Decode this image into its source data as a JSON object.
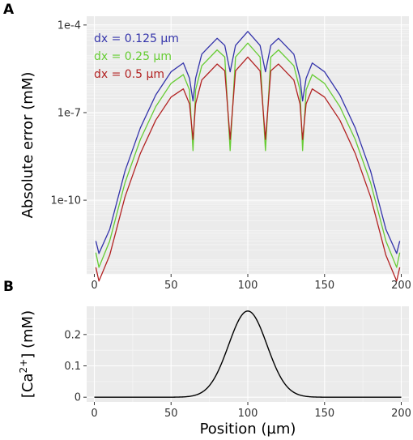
{
  "colors": {
    "panel_bg": "#ebebeb",
    "grid_major": "#ffffff",
    "grid_minor": "#f5f5f5",
    "tick": "#333333"
  },
  "chart_data": [
    {
      "panel": "A",
      "type": "line",
      "title": "",
      "xlabel": "",
      "ylabel": "Absolute error (mM)",
      "yscale": "log",
      "xlim": [
        -5,
        205
      ],
      "ylim": [
        3e-13,
        0.0002
      ],
      "x_ticks": [
        0,
        50,
        100,
        150,
        200
      ],
      "y_ticks": [
        1e-10,
        1e-07,
        0.0001
      ],
      "x_tick_labels": [
        "0",
        "50",
        "100",
        "150",
        "200"
      ],
      "y_tick_labels": [
        "1e-10",
        "1e-7",
        "1e-4"
      ],
      "grid": true,
      "legend_position": "top-left, inside, unboxed labels",
      "series": [
        {
          "name": "dx = 0.125 µm",
          "color": "#3333aa",
          "points": [
            [
              1,
              4e-12
            ],
            [
              3,
              1.5e-12
            ],
            [
              10,
              1e-11
            ],
            [
              20,
              1e-09
            ],
            [
              30,
              3e-08
            ],
            [
              40,
              4e-07
            ],
            [
              50,
              2.5e-06
            ],
            [
              58,
              5e-06
            ],
            [
              62,
              1.5e-06
            ],
            [
              64.3,
              2.5e-07
            ],
            [
              66,
              1.5e-06
            ],
            [
              70,
              1e-05
            ],
            [
              80,
              3.5e-05
            ],
            [
              85,
              2e-05
            ],
            [
              88.5,
              2.5e-06
            ],
            [
              92,
              2e-05
            ],
            [
              100,
              6e-05
            ],
            [
              108,
              2e-05
            ],
            [
              111.5,
              2.5e-06
            ],
            [
              115,
              2e-05
            ],
            [
              120,
              3.5e-05
            ],
            [
              130,
              1e-05
            ],
            [
              134,
              1.5e-06
            ],
            [
              135.7,
              2.5e-07
            ],
            [
              138,
              1.5e-06
            ],
            [
              142,
              5e-06
            ],
            [
              150,
              2.5e-06
            ],
            [
              160,
              4e-07
            ],
            [
              170,
              3e-08
            ],
            [
              180,
              1e-09
            ],
            [
              190,
              1e-11
            ],
            [
              197,
              1.5e-12
            ],
            [
              199,
              4e-12
            ]
          ]
        },
        {
          "name": "dx = 0.25 µm",
          "color": "#66cc33",
          "points": [
            [
              1,
              1.6e-12
            ],
            [
              3,
              5e-13
            ],
            [
              10,
              4e-12
            ],
            [
              20,
              4e-10
            ],
            [
              30,
              1.2e-08
            ],
            [
              40,
              1.6e-07
            ],
            [
              50,
              1e-06
            ],
            [
              58,
              2e-06
            ],
            [
              62,
              6e-07
            ],
            [
              64.3,
              5e-09
            ],
            [
              66,
              6e-07
            ],
            [
              70,
              4e-06
            ],
            [
              80,
              1.4e-05
            ],
            [
              85,
              8e-06
            ],
            [
              88.5,
              5e-09
            ],
            [
              92,
              8e-06
            ],
            [
              100,
              2.4e-05
            ],
            [
              108,
              8e-06
            ],
            [
              111.5,
              5e-09
            ],
            [
              115,
              8e-06
            ],
            [
              120,
              1.4e-05
            ],
            [
              130,
              4e-06
            ],
            [
              134,
              6e-07
            ],
            [
              135.7,
              5e-09
            ],
            [
              138,
              6e-07
            ],
            [
              142,
              2e-06
            ],
            [
              150,
              1e-06
            ],
            [
              160,
              1.6e-07
            ],
            [
              170,
              1.2e-08
            ],
            [
              180,
              4e-10
            ],
            [
              190,
              4e-12
            ],
            [
              197,
              5e-13
            ],
            [
              199,
              1.6e-12
            ]
          ]
        },
        {
          "name": "dx = 0.5 µm",
          "color": "#b22222",
          "points": [
            [
              1,
              5e-13
            ],
            [
              3,
              1.7e-13
            ],
            [
              10,
              1.3e-12
            ],
            [
              20,
              1.3e-10
            ],
            [
              30,
              4e-09
            ],
            [
              40,
              5.5e-08
            ],
            [
              50,
              3.4e-07
            ],
            [
              58,
              6.5e-07
            ],
            [
              62,
              2e-07
            ],
            [
              64.3,
              1.2e-08
            ],
            [
              66,
              2e-07
            ],
            [
              70,
              1.3e-06
            ],
            [
              80,
              4.6e-06
            ],
            [
              85,
              2.7e-06
            ],
            [
              88.5,
              1.2e-08
            ],
            [
              92,
              2.7e-06
            ],
            [
              100,
              8e-06
            ],
            [
              108,
              2.7e-06
            ],
            [
              111.5,
              1.2e-08
            ],
            [
              115,
              2.7e-06
            ],
            [
              120,
              4.6e-06
            ],
            [
              130,
              1.3e-06
            ],
            [
              134,
              2e-07
            ],
            [
              135.7,
              1.2e-08
            ],
            [
              138,
              2e-07
            ],
            [
              142,
              6.5e-07
            ],
            [
              150,
              3.4e-07
            ],
            [
              160,
              5.5e-08
            ],
            [
              170,
              4e-09
            ],
            [
              180,
              1.3e-10
            ],
            [
              190,
              1.3e-12
            ],
            [
              197,
              1.7e-13
            ],
            [
              199,
              5e-13
            ]
          ]
        }
      ]
    },
    {
      "panel": "B",
      "type": "line",
      "title": "",
      "xlabel": "Position (µm)",
      "ylabel_parts": [
        "[Ca",
        "2+",
        "] (mM)"
      ],
      "xlim": [
        -5,
        205
      ],
      "ylim": [
        -0.015,
        0.29
      ],
      "x_ticks": [
        0,
        50,
        100,
        150,
        200
      ],
      "y_ticks": [
        0,
        0.1,
        0.2
      ],
      "x_tick_labels": [
        "0",
        "50",
        "100",
        "150",
        "200"
      ],
      "y_tick_labels": [
        "0",
        "0.1",
        "0.2"
      ],
      "grid": true,
      "series": [
        {
          "color": "#000000",
          "gaussian": {
            "peak": 0.275,
            "center": 100,
            "sigma": 12.5
          }
        }
      ]
    }
  ]
}
